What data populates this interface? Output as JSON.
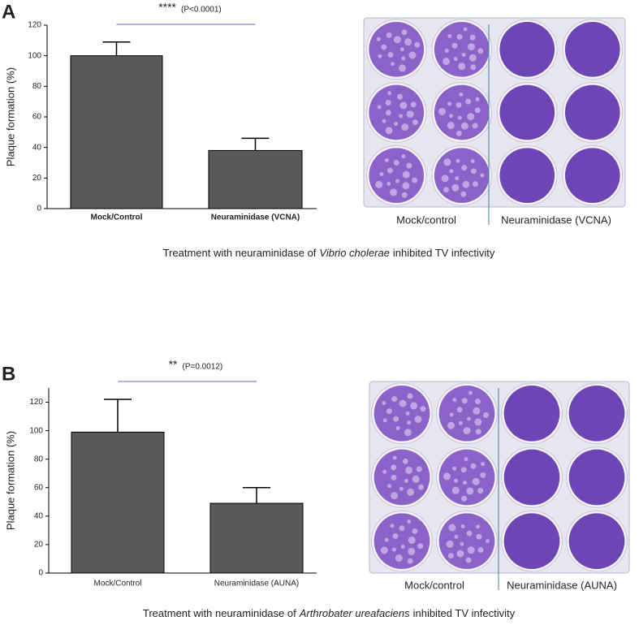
{
  "chart_data": [
    {
      "type": "bar",
      "panel": "A",
      "y_label": "Plaque formation (%)",
      "categories": [
        "Mock/Control",
        "Neuraminidase (VCNA)"
      ],
      "values": [
        100,
        38
      ],
      "errors": [
        9,
        8
      ],
      "color": "#595959",
      "ylim": [
        0,
        120
      ],
      "yticks": [
        0,
        20,
        40,
        60,
        80,
        100,
        120
      ],
      "significance": "****",
      "p_value": "(P<0.0001)",
      "plate_labels": [
        "Mock/control",
        "Neuraminidase (VCNA)"
      ],
      "caption": [
        "Treatment  with neuraminidase of",
        "Vibrio cholerae",
        "inhibited TV infectivity"
      ]
    },
    {
      "type": "bar",
      "panel": "B",
      "y_label": "Plaque formation (%)",
      "categories": [
        "Mock/Control",
        "Neuraminidase (AUNA)"
      ],
      "values": [
        99,
        49
      ],
      "errors": [
        23,
        11
      ],
      "color": "#595959",
      "ylim": [
        0,
        130
      ],
      "yticks": [
        0,
        20,
        40,
        60,
        80,
        100,
        120
      ],
      "significance": "**",
      "p_value": "(P=0.0012)",
      "plate_labels": [
        "Mock/control",
        "Neuraminidase (AUNA)"
      ],
      "caption": [
        "Treatment  with neuraminidase of",
        "Arthrobater ureafaciens",
        "inhibited TV infectivity"
      ]
    }
  ]
}
